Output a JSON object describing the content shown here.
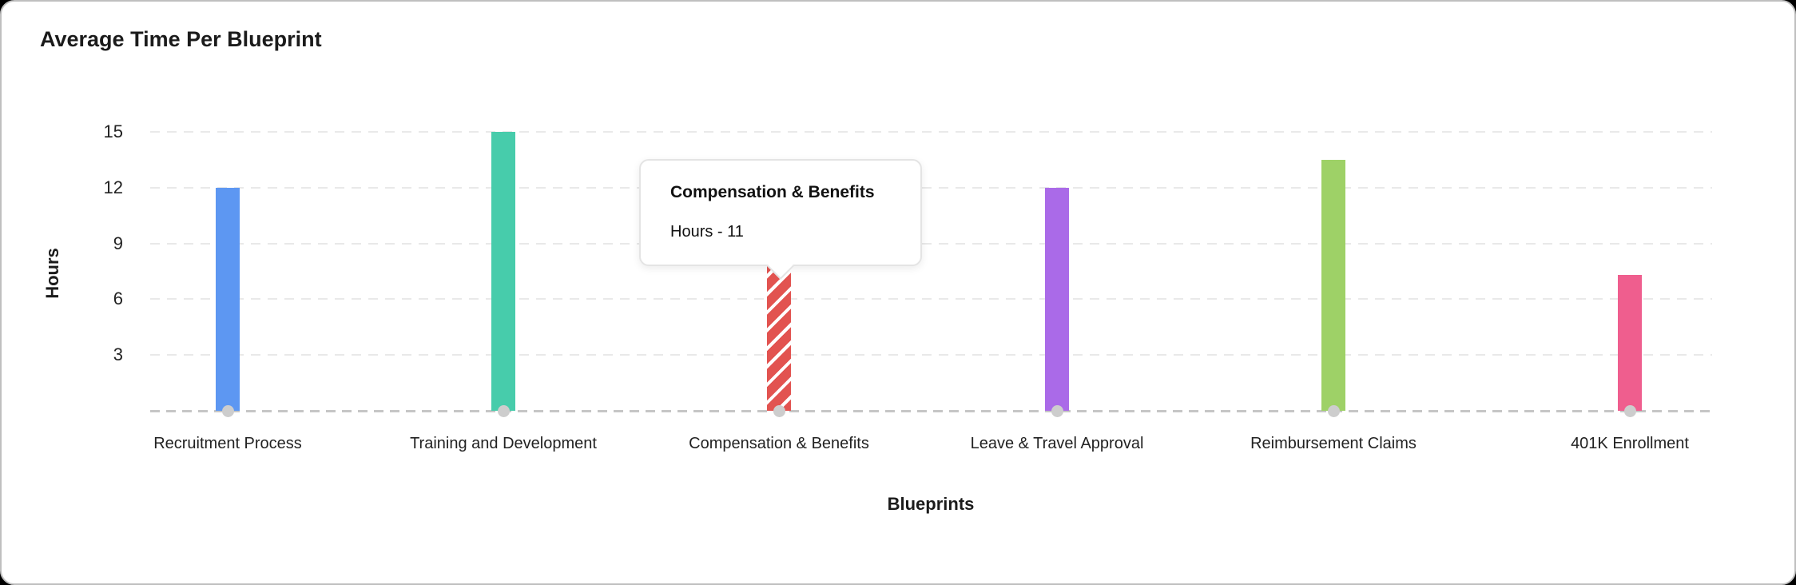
{
  "page": {
    "background": "#000000",
    "card_background": "#ffffff",
    "card_border": "#bfbfbf"
  },
  "header": {
    "title": "Average Time Per Blueprint"
  },
  "chart_data": {
    "type": "bar",
    "title": "Average Time Per Blueprint",
    "xlabel": "Blueprints",
    "ylabel": "Hours",
    "categories": [
      "Recruitment Process",
      "Training and Development",
      "Compensation & Benefits",
      "Leave & Travel Approval",
      "Reimbursement Claims",
      "401K Enrollment"
    ],
    "values": [
      12,
      15,
      11,
      12,
      13.5,
      7.3
    ],
    "bar_colors": [
      "#5d97f2",
      "#47ccab",
      "#e25350",
      "#aa6ae8",
      "#9ed167",
      "#ef5e8e"
    ],
    "yticks": [
      3,
      6,
      9,
      12,
      15
    ],
    "ylim": [
      0,
      15
    ],
    "legend": "none",
    "grid": {
      "horizontal_dashed": true,
      "gridline_color": "#e9e9e9",
      "baseline_color": "#c6c6c6"
    },
    "base_marker_color": "#cdcdcd",
    "hovered_category": "Compensation & Benefits",
    "hovered_style": "white-diagonal-hatch"
  },
  "tooltip": {
    "title": "Compensation & Benefits",
    "line": "Hours - 11"
  }
}
